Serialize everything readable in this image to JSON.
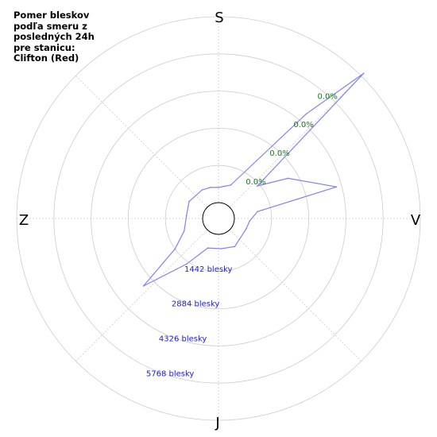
{
  "chart_data": {
    "type": "polar-area",
    "title_lines": [
      "Pomer bleskov",
      "podľa smeru z",
      "posledných 24h",
      "pre stanicu:",
      "Clifton (Red)"
    ],
    "directions": {
      "top": "S",
      "right": "V",
      "bottom": "J",
      "left": "Z"
    },
    "radial_ticks": [
      1442,
      2884,
      4326,
      5768
    ],
    "radial_tick_labels": [
      "1442 blesky",
      "2884 blesky",
      "4326 blesky",
      "5768 blesky"
    ],
    "percent_labels": [
      "0.0%",
      "0.0%",
      "0.0%",
      "0.0%"
    ],
    "series_color": "#8080ff",
    "percent_color": "#1a7a1a",
    "count_color": "#2020e0",
    "series": [
      {
        "values": [
          {
            "bearing": 0,
            "count": 590
          },
          {
            "bearing": 20,
            "count": 760
          },
          {
            "bearing": 40,
            "count": 4680
          },
          {
            "bearing": 45,
            "count": 7350
          },
          {
            "bearing": 50,
            "count": 1350
          },
          {
            "bearing": 60,
            "count": 2500
          },
          {
            "bearing": 75,
            "count": 4120
          },
          {
            "bearing": 80,
            "count": 920
          },
          {
            "bearing": 95,
            "count": 590
          },
          {
            "bearing": 110,
            "count": 530
          },
          {
            "bearing": 150,
            "count": 640
          },
          {
            "bearing": 175,
            "count": 560
          },
          {
            "bearing": 200,
            "count": 600
          },
          {
            "bearing": 215,
            "count": 1540
          },
          {
            "bearing": 228,
            "count": 3300
          },
          {
            "bearing": 235,
            "count": 1450
          },
          {
            "bearing": 250,
            "count": 800
          },
          {
            "bearing": 275,
            "count": 630
          },
          {
            "bearing": 300,
            "count": 700
          },
          {
            "bearing": 330,
            "count": 660
          },
          {
            "bearing": 345,
            "count": 630
          }
        ]
      }
    ]
  }
}
